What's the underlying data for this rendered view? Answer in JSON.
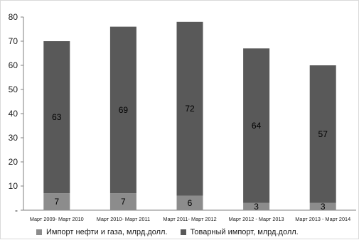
{
  "chart_data": {
    "type": "bar",
    "stacked": true,
    "categories": [
      "Март 2009- Март 2010",
      "Март 2010- Март 2011",
      "Март 2011- Март 2012",
      "Март 2012 - Март 2013",
      "Март 2013 - Март 2014"
    ],
    "series": [
      {
        "name": "Импорт нефти и газа, млрд.долл.",
        "values": [
          7,
          7,
          6,
          3,
          3
        ],
        "color": "#8c8c8c"
      },
      {
        "name": "Товарный импорт, млрд.долл.",
        "values": [
          63,
          69,
          72,
          64,
          57
        ],
        "color": "#595959"
      }
    ],
    "ylim": [
      0,
      80
    ],
    "yticks": [
      "-",
      "10",
      "20",
      "30",
      "40",
      "50",
      "60",
      "70",
      "80"
    ],
    "grid": false,
    "legend": "bottom"
  }
}
